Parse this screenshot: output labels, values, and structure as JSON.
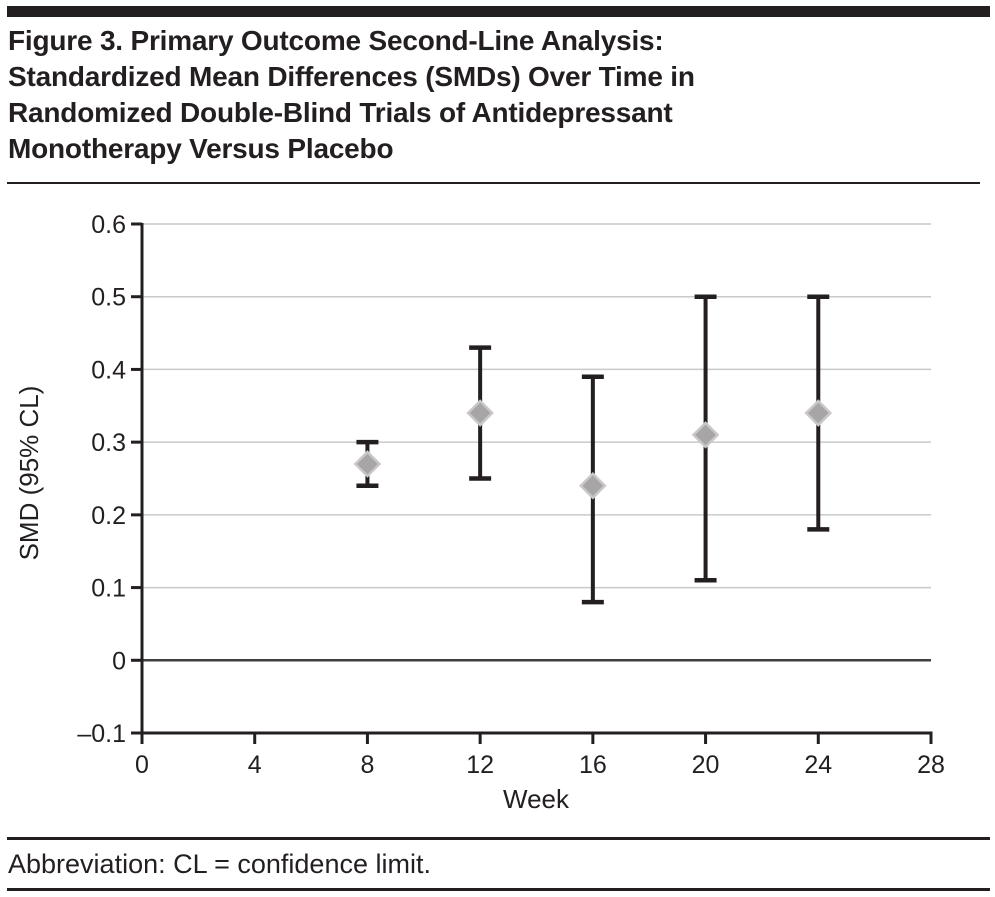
{
  "figure": {
    "title": "Figure 3. Primary Outcome Second-Line Analysis:\nStandardized Mean Differences (SMDs) Over Time in\nRandomized Double-Blind Trials of Antidepressant\nMonotherapy Versus Placebo",
    "footnote": "Abbreviation: CL = confidence limit."
  },
  "chart_data": {
    "type": "scatter",
    "title": "",
    "xlabel": "Week",
    "ylabel": "SMD (95% CL)",
    "x": [
      8,
      12,
      16,
      20,
      24
    ],
    "series": [
      {
        "name": "SMD",
        "values": [
          0.27,
          0.34,
          0.24,
          0.31,
          0.34
        ],
        "ci_lower": [
          0.24,
          0.25,
          0.08,
          0.11,
          0.18
        ],
        "ci_upper": [
          0.3,
          0.43,
          0.39,
          0.5,
          0.5
        ]
      }
    ],
    "xlim": [
      0,
      28
    ],
    "ylim": [
      -0.1,
      0.6
    ],
    "x_ticks": [
      0,
      4,
      8,
      12,
      16,
      20,
      24,
      28
    ],
    "x_tick_labels": [
      "0",
      "4",
      "8",
      "12",
      "16",
      "20",
      "24",
      "28"
    ],
    "y_ticks": [
      0.6,
      0.5,
      0.4,
      0.3,
      0.2,
      0.1,
      0,
      -0.1
    ],
    "y_tick_labels": [
      "0.6",
      "0.5",
      "0.4",
      "0.3",
      "0.2",
      "0.1",
      "0",
      "–0.1"
    ],
    "grid": "horizontal",
    "legend": "none",
    "marker": "diamond",
    "colors": {
      "marker_fill": "#a7a5a6",
      "marker_edge": "#c9c7c8",
      "error_bar": "#231f20",
      "gridline": "#c9c9c9",
      "zero_line": "#3f3f3f",
      "axis": "#231f20",
      "text": "#231f20",
      "rule": "#231f20"
    }
  }
}
